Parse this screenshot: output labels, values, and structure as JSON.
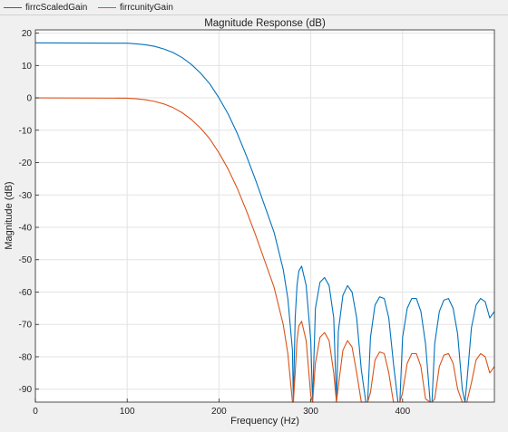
{
  "legend": [
    {
      "name": "firrcScaledGain",
      "color": "#0072BD"
    },
    {
      "name": "firrcunityGain",
      "color": "#D95319"
    }
  ],
  "chart_data": {
    "type": "line",
    "title": "Magnitude Response (dB)",
    "xlabel": "Frequency (Hz)",
    "ylabel": "Magnitude (dB)",
    "xlim": [
      0,
      500
    ],
    "ylim": [
      -94,
      21
    ],
    "xticks": [
      0,
      100,
      200,
      300,
      400
    ],
    "yticks": [
      20,
      10,
      0,
      -10,
      -20,
      -30,
      -40,
      -50,
      -60,
      -70,
      -80,
      -90
    ],
    "grid": true,
    "legend_position": "top",
    "series": [
      {
        "name": "firrcScaledGain",
        "color": "#0072BD",
        "x": [
          0,
          100,
          110,
          120,
          130,
          140,
          150,
          160,
          170,
          180,
          190,
          200,
          210,
          220,
          230,
          240,
          250,
          260,
          270,
          275,
          280,
          281,
          283,
          285,
          287,
          290,
          295,
          300,
          302,
          305,
          310,
          315,
          320,
          325,
          328,
          330,
          335,
          340,
          345,
          350,
          355,
          360,
          362,
          365,
          370,
          375,
          380,
          385,
          390,
          395,
          397,
          400,
          405,
          410,
          415,
          420,
          425,
          430,
          432,
          435,
          440,
          445,
          450,
          455,
          460,
          465,
          468,
          470,
          475,
          480,
          485,
          490,
          495,
          500
        ],
        "y": [
          17,
          16.9,
          16.7,
          16.4,
          15.9,
          15.1,
          14,
          12.4,
          10.3,
          7.6,
          4.3,
          0,
          -5,
          -11,
          -18,
          -25.5,
          -33.5,
          -41.5,
          -53,
          -62,
          -78,
          -94,
          -68,
          -58,
          -53.5,
          -52,
          -58,
          -75,
          -94,
          -65,
          -57,
          -55.5,
          -58,
          -68,
          -94,
          -72,
          -61,
          -58,
          -60,
          -68,
          -84,
          -94,
          -94,
          -74,
          -64,
          -61.5,
          -62,
          -68,
          -82,
          -94,
          -94,
          -74,
          -65,
          -62,
          -62,
          -66,
          -76,
          -94,
          -94,
          -76,
          -66,
          -62.5,
          -62,
          -65,
          -73,
          -90,
          -94,
          -88,
          -71,
          -64,
          -62,
          -63,
          -68,
          -66
        ]
      },
      {
        "name": "firrcunityGain",
        "color": "#D95319",
        "x": [
          0,
          100,
          110,
          120,
          130,
          140,
          150,
          160,
          170,
          180,
          190,
          200,
          210,
          220,
          230,
          240,
          250,
          260,
          270,
          275,
          280,
          281,
          283,
          285,
          287,
          290,
          295,
          300,
          302,
          305,
          310,
          315,
          320,
          325,
          328,
          330,
          335,
          340,
          345,
          350,
          355,
          360,
          362,
          365,
          370,
          375,
          380,
          385,
          390,
          395,
          397,
          400,
          405,
          410,
          415,
          420,
          425,
          430,
          432,
          435,
          440,
          445,
          450,
          455,
          460,
          465,
          468,
          470,
          475,
          480,
          485,
          490,
          495,
          500
        ],
        "y": [
          0,
          -0.1,
          -0.3,
          -0.6,
          -1.1,
          -1.9,
          -3,
          -4.6,
          -6.7,
          -9.4,
          -12.7,
          -17,
          -22,
          -28,
          -35,
          -42.5,
          -50.5,
          -58.5,
          -70,
          -79,
          -94,
          -94,
          -85,
          -75,
          -70.5,
          -69,
          -75,
          -92,
          -94,
          -82,
          -74,
          -72.5,
          -75,
          -85,
          -94,
          -89,
          -78,
          -75,
          -77,
          -85,
          -94,
          -94,
          -94,
          -91,
          -81,
          -78.5,
          -79,
          -85,
          -94,
          -94,
          -94,
          -91,
          -82,
          -79,
          -79,
          -83,
          -93,
          -94,
          -94,
          -93,
          -83,
          -79.5,
          -79,
          -82,
          -90,
          -94,
          -94,
          -94,
          -88,
          -81,
          -79,
          -80,
          -85,
          -83
        ]
      }
    ]
  }
}
